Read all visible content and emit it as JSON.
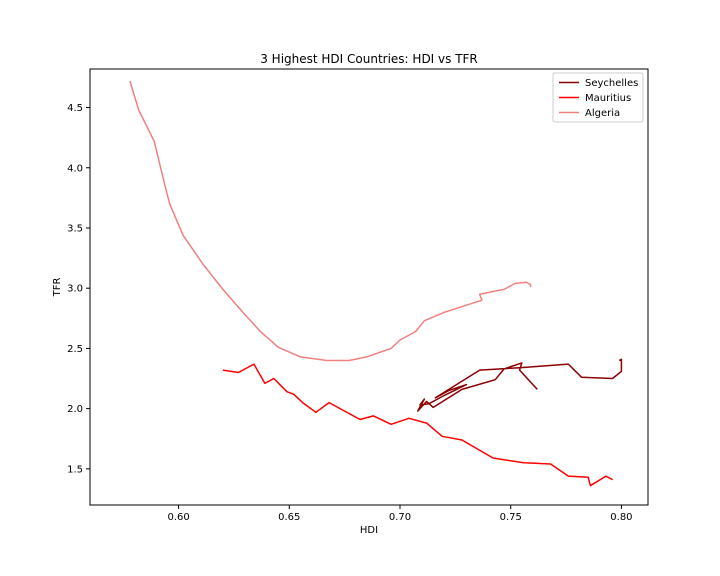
{
  "chart_data": {
    "type": "line",
    "title": "3 Highest HDI Countries: HDI vs TFR",
    "xlabel": "HDI",
    "ylabel": "TFR",
    "xlim": [
      0.56,
      0.812
    ],
    "ylim": [
      1.2,
      4.82
    ],
    "x_ticks": [
      0.6,
      0.65,
      0.7,
      0.75,
      0.8
    ],
    "x_tick_labels": [
      "0.60",
      "0.65",
      "0.70",
      "0.75",
      "0.80"
    ],
    "y_ticks": [
      1.5,
      2.0,
      2.5,
      3.0,
      3.5,
      4.0,
      4.5
    ],
    "y_tick_labels": [
      "1.5",
      "2.0",
      "2.5",
      "3.0",
      "3.5",
      "4.0",
      "4.5"
    ],
    "grid": false,
    "legend_position": "top-right",
    "series": [
      {
        "name": "Seychelles",
        "color": "#8b0000",
        "points": [
          [
            0.762,
            2.16
          ],
          [
            0.754,
            2.32
          ],
          [
            0.755,
            2.38
          ],
          [
            0.747,
            2.33
          ],
          [
            0.743,
            2.24
          ],
          [
            0.728,
            2.16
          ],
          [
            0.715,
            2.01
          ],
          [
            0.712,
            2.06
          ],
          [
            0.708,
            1.98
          ],
          [
            0.711,
            2.08
          ],
          [
            0.709,
            2.03
          ],
          [
            0.713,
            2.04
          ],
          [
            0.72,
            2.11
          ],
          [
            0.73,
            2.2
          ],
          [
            0.722,
            2.15
          ],
          [
            0.716,
            2.09
          ],
          [
            0.736,
            2.32
          ],
          [
            0.754,
            2.34
          ],
          [
            0.776,
            2.37
          ],
          [
            0.782,
            2.26
          ],
          [
            0.796,
            2.25
          ],
          [
            0.8,
            2.31
          ],
          [
            0.8,
            2.41
          ],
          [
            0.799,
            2.4
          ]
        ]
      },
      {
        "name": "Mauritius",
        "color": "#ff0000",
        "points": [
          [
            0.62,
            2.32
          ],
          [
            0.627,
            2.3
          ],
          [
            0.634,
            2.37
          ],
          [
            0.639,
            2.21
          ],
          [
            0.643,
            2.25
          ],
          [
            0.649,
            2.14
          ],
          [
            0.652,
            2.12
          ],
          [
            0.656,
            2.05
          ],
          [
            0.662,
            1.97
          ],
          [
            0.668,
            2.05
          ],
          [
            0.675,
            1.98
          ],
          [
            0.682,
            1.91
          ],
          [
            0.688,
            1.94
          ],
          [
            0.696,
            1.87
          ],
          [
            0.704,
            1.92
          ],
          [
            0.712,
            1.88
          ],
          [
            0.719,
            1.77
          ],
          [
            0.728,
            1.74
          ],
          [
            0.742,
            1.59
          ],
          [
            0.756,
            1.55
          ],
          [
            0.768,
            1.54
          ],
          [
            0.776,
            1.44
          ],
          [
            0.785,
            1.43
          ],
          [
            0.786,
            1.36
          ],
          [
            0.793,
            1.44
          ],
          [
            0.796,
            1.41
          ]
        ]
      },
      {
        "name": "Algeria",
        "color": "#f08080",
        "points": [
          [
            0.578,
            4.72
          ],
          [
            0.582,
            4.48
          ],
          [
            0.589,
            4.22
          ],
          [
            0.594,
            3.84
          ],
          [
            0.596,
            3.7
          ],
          [
            0.602,
            3.44
          ],
          [
            0.611,
            3.2
          ],
          [
            0.62,
            2.99
          ],
          [
            0.629,
            2.8
          ],
          [
            0.637,
            2.64
          ],
          [
            0.645,
            2.51
          ],
          [
            0.655,
            2.43
          ],
          [
            0.667,
            2.4
          ],
          [
            0.677,
            2.4
          ],
          [
            0.685,
            2.43
          ],
          [
            0.696,
            2.5
          ],
          [
            0.7,
            2.57
          ],
          [
            0.707,
            2.64
          ],
          [
            0.711,
            2.73
          ],
          [
            0.72,
            2.8
          ],
          [
            0.737,
            2.9
          ],
          [
            0.736,
            2.95
          ],
          [
            0.747,
            2.99
          ],
          [
            0.752,
            3.04
          ],
          [
            0.757,
            3.05
          ],
          [
            0.759,
            3.03
          ],
          [
            0.759,
            3.01
          ]
        ]
      }
    ]
  }
}
